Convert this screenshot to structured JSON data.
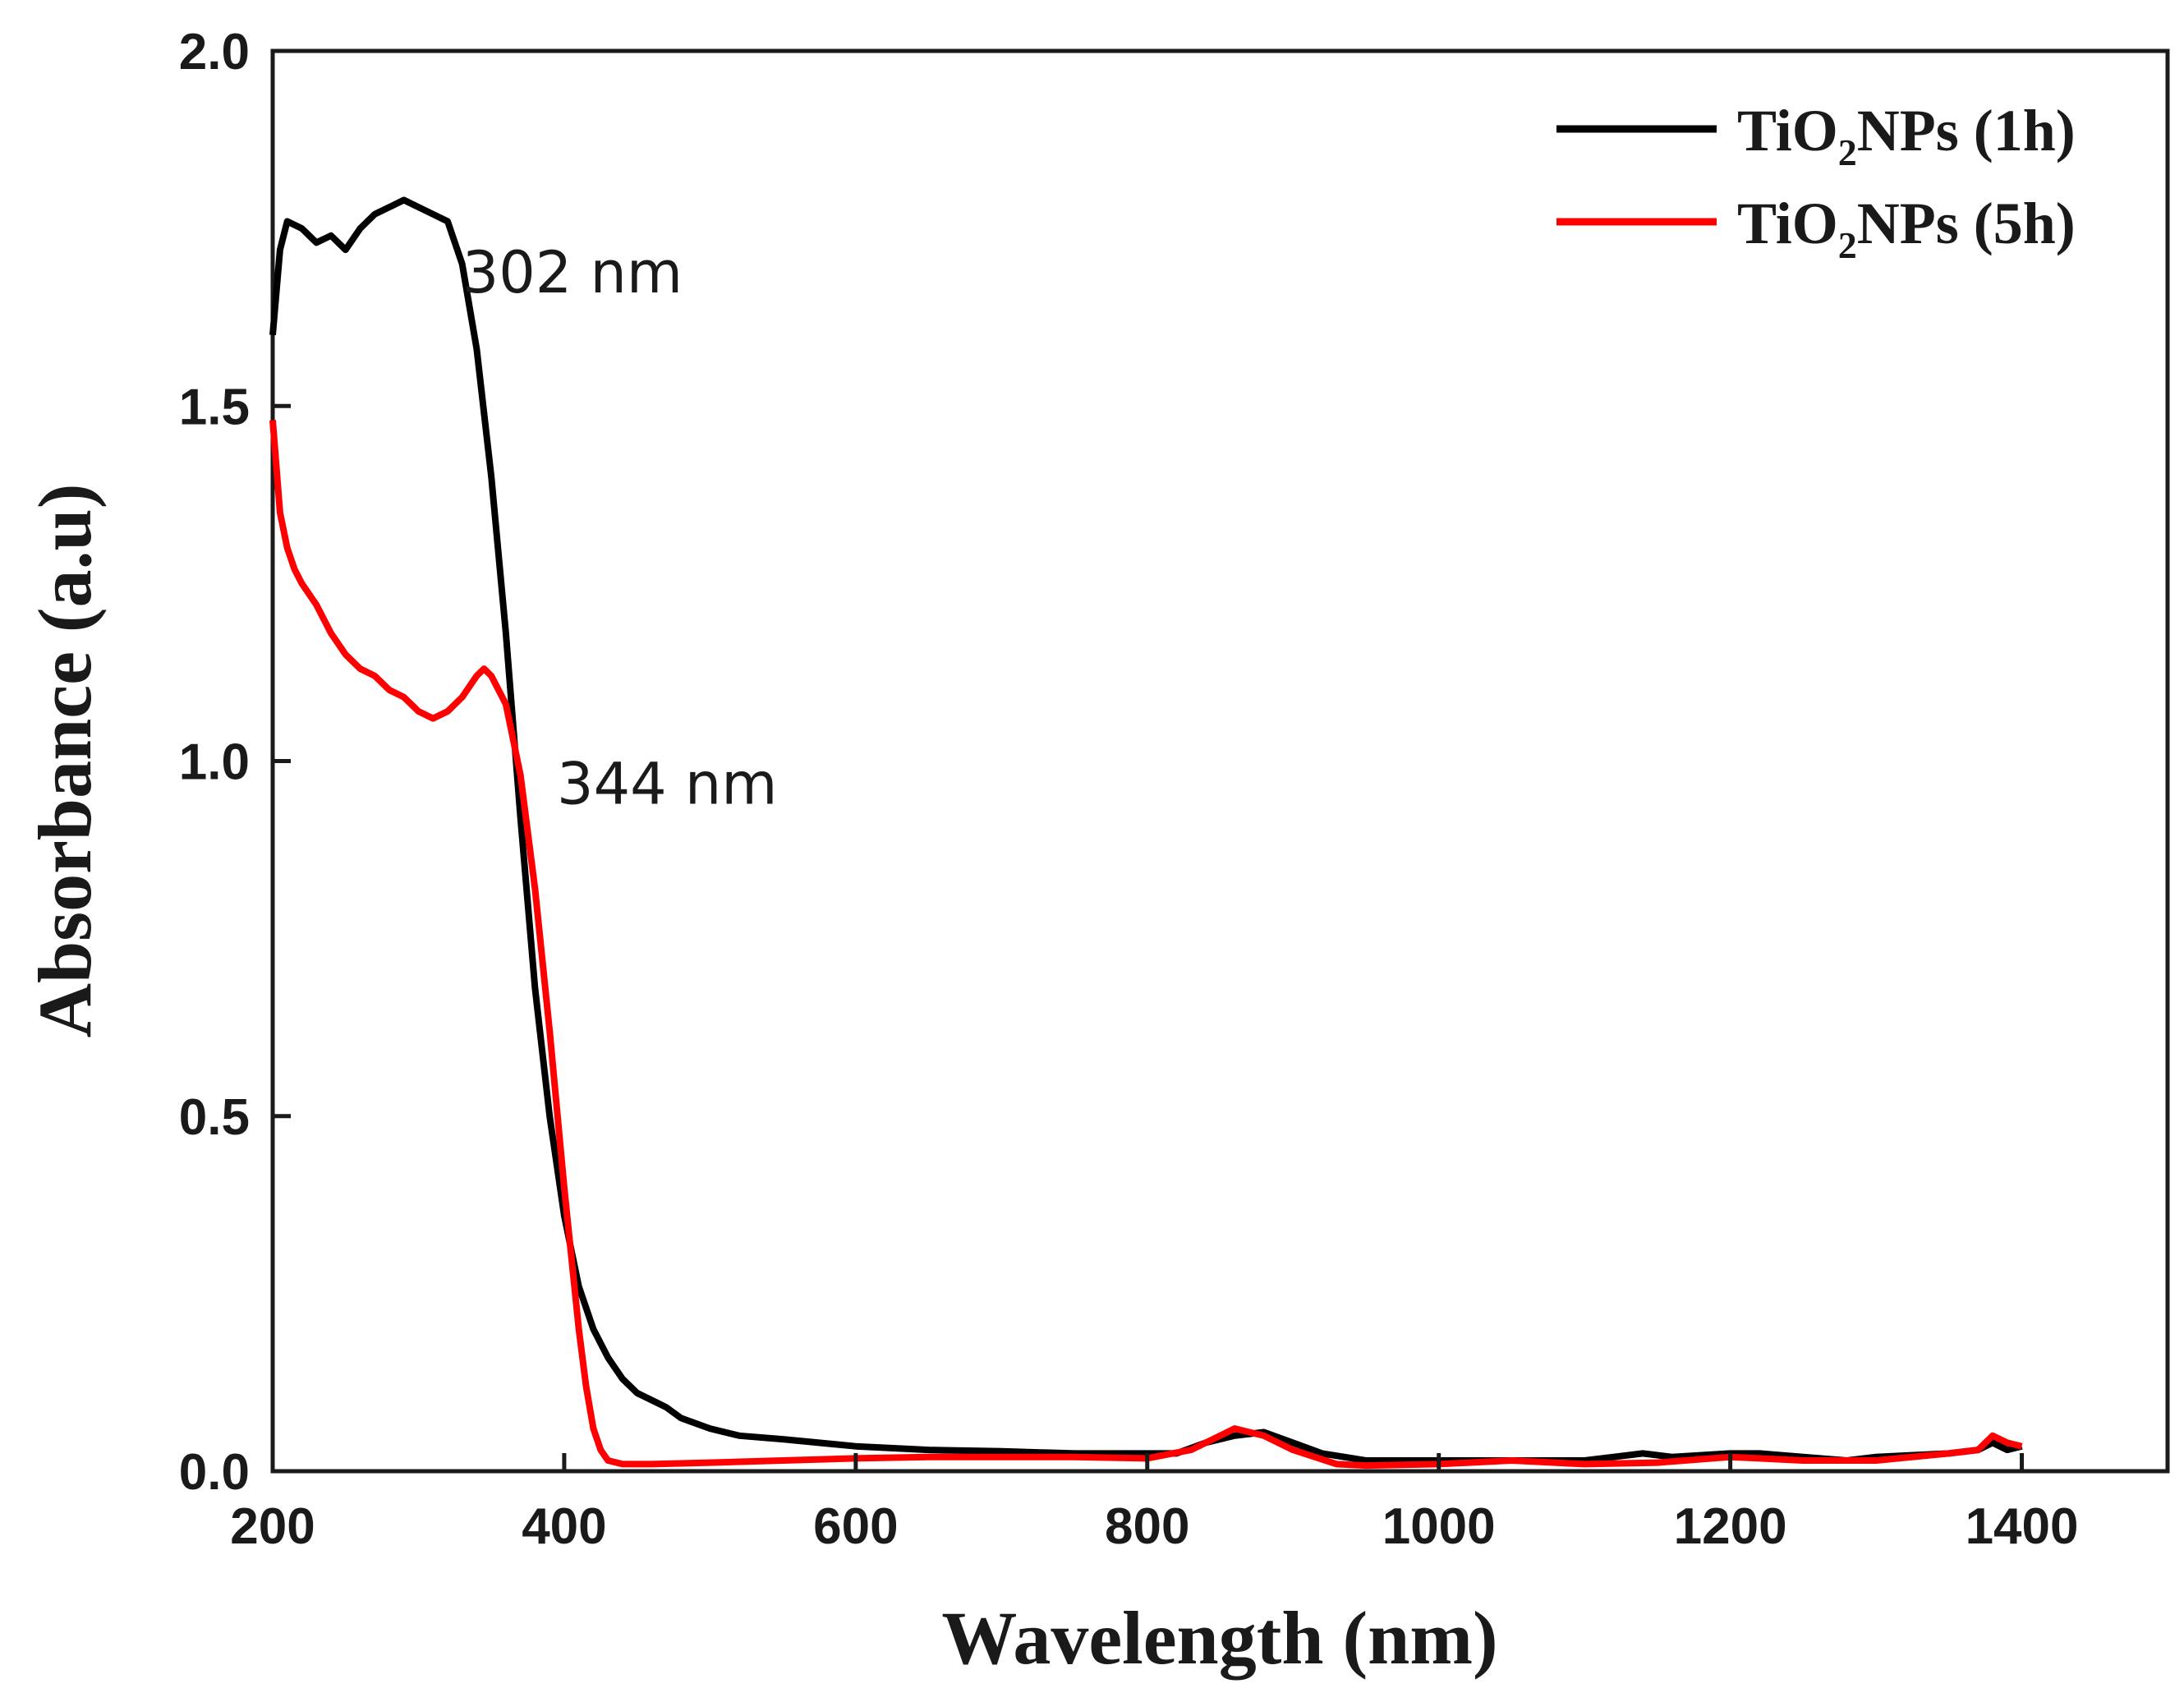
{
  "chart_data": {
    "type": "line",
    "xlabel": "Wavelength (nm)",
    "ylabel": "Absorbance (a.u)",
    "xlim": [
      200,
      1500
    ],
    "ylim": [
      0,
      2
    ],
    "xticks": [
      200,
      400,
      600,
      800,
      1000,
      1200,
      1400
    ],
    "xtick_labels": [
      "200",
      "400",
      "600",
      "800",
      "1000",
      "1200",
      "1400"
    ],
    "yticks": [
      0,
      0.5,
      1.0,
      1.5,
      2.0
    ],
    "ytick_labels": [
      "0.0",
      "0.5",
      "1.0",
      "1.5",
      "2.0"
    ],
    "grid": false,
    "legend_position": "top-right",
    "series": [
      {
        "name": "TiO2NPs (1h)",
        "label_main": "TiO",
        "label_sub": "2",
        "label_rest": "NPs (1h)",
        "color": "#000000",
        "x": [
          200,
          205,
          210,
          220,
          230,
          240,
          250,
          260,
          270,
          280,
          290,
          300,
          310,
          320,
          330,
          340,
          350,
          360,
          370,
          380,
          390,
          400,
          410,
          420,
          430,
          440,
          450,
          460,
          470,
          480,
          500,
          520,
          550,
          600,
          650,
          700,
          750,
          800,
          820,
          840,
          860,
          880,
          900,
          920,
          950,
          1000,
          1050,
          1100,
          1120,
          1140,
          1160,
          1200,
          1220,
          1250,
          1280,
          1300,
          1350,
          1370,
          1380,
          1390,
          1400
        ],
        "y": [
          1.6,
          1.72,
          1.76,
          1.75,
          1.73,
          1.74,
          1.72,
          1.75,
          1.77,
          1.78,
          1.79,
          1.78,
          1.77,
          1.76,
          1.7,
          1.58,
          1.4,
          1.18,
          0.92,
          0.68,
          0.5,
          0.36,
          0.26,
          0.2,
          0.16,
          0.13,
          0.11,
          0.1,
          0.09,
          0.075,
          0.06,
          0.05,
          0.045,
          0.035,
          0.03,
          0.028,
          0.025,
          0.025,
          0.025,
          0.04,
          0.05,
          0.055,
          0.04,
          0.025,
          0.015,
          0.015,
          0.015,
          0.015,
          0.02,
          0.025,
          0.02,
          0.025,
          0.025,
          0.02,
          0.015,
          0.02,
          0.025,
          0.03,
          0.04,
          0.03,
          0.035
        ]
      },
      {
        "name": "TiO2NPs (5h)",
        "label_main": "TiO",
        "label_sub": "2",
        "label_rest": "NPs (5h)",
        "color": "#ff0000",
        "x": [
          200,
          205,
          210,
          215,
          220,
          230,
          240,
          250,
          260,
          270,
          280,
          290,
          300,
          310,
          320,
          330,
          340,
          345,
          350,
          360,
          370,
          380,
          390,
          400,
          405,
          410,
          415,
          420,
          425,
          430,
          440,
          460,
          500,
          550,
          600,
          650,
          700,
          750,
          800,
          830,
          850,
          860,
          880,
          900,
          930,
          950,
          1000,
          1050,
          1100,
          1150,
          1200,
          1250,
          1300,
          1350,
          1370,
          1380,
          1390,
          1400
        ],
        "y": [
          1.48,
          1.35,
          1.3,
          1.27,
          1.25,
          1.22,
          1.18,
          1.15,
          1.13,
          1.12,
          1.1,
          1.09,
          1.07,
          1.06,
          1.07,
          1.09,
          1.12,
          1.13,
          1.12,
          1.08,
          0.98,
          0.82,
          0.62,
          0.4,
          0.3,
          0.2,
          0.12,
          0.06,
          0.03,
          0.015,
          0.01,
          0.01,
          0.012,
          0.015,
          0.018,
          0.02,
          0.02,
          0.02,
          0.018,
          0.03,
          0.05,
          0.06,
          0.05,
          0.03,
          0.01,
          0.008,
          0.01,
          0.015,
          0.01,
          0.012,
          0.02,
          0.015,
          0.015,
          0.025,
          0.03,
          0.05,
          0.04,
          0.035
        ]
      }
    ],
    "annotations": [
      {
        "text": "302 nm",
        "x": 330,
        "y": 1.66
      },
      {
        "text": "344 nm",
        "x": 395,
        "y": 0.94
      }
    ]
  }
}
